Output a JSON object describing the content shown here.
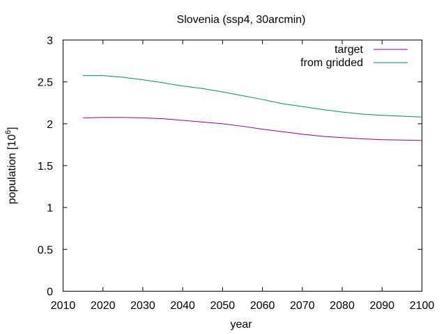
{
  "chart_data": {
    "type": "line",
    "title": "Slovenia (ssp4, 30arcmin)",
    "xlabel": "year",
    "ylabel": "population [10",
    "ylabel_superscript": "6",
    "ylabel_suffix": "]",
    "xlim": [
      2010,
      2100
    ],
    "ylim": [
      0,
      3
    ],
    "xticks": [
      2010,
      2020,
      2030,
      2040,
      2050,
      2060,
      2070,
      2080,
      2090,
      2100
    ],
    "yticks": [
      "0",
      "0.5",
      "1",
      "1.5",
      "2",
      "2.5",
      "3"
    ],
    "grid": false,
    "legend_position": "top-right",
    "series": [
      {
        "name": "target",
        "color": "#8b008b",
        "x": [
          2015,
          2020,
          2025,
          2030,
          2035,
          2040,
          2045,
          2050,
          2055,
          2060,
          2065,
          2070,
          2075,
          2080,
          2085,
          2090,
          2095,
          2100
        ],
        "y": [
          2.07,
          2.075,
          2.075,
          2.07,
          2.06,
          2.04,
          2.02,
          2.0,
          1.97,
          1.935,
          1.905,
          1.875,
          1.85,
          1.835,
          1.82,
          1.81,
          1.805,
          1.8
        ]
      },
      {
        "name": "from gridded",
        "color": "#008b6b",
        "x": [
          2015,
          2020,
          2025,
          2030,
          2035,
          2040,
          2045,
          2050,
          2055,
          2060,
          2065,
          2070,
          2075,
          2080,
          2085,
          2090,
          2095,
          2100
        ],
        "y": [
          2.575,
          2.575,
          2.555,
          2.525,
          2.49,
          2.45,
          2.42,
          2.38,
          2.335,
          2.29,
          2.24,
          2.205,
          2.17,
          2.14,
          2.115,
          2.1,
          2.09,
          2.08
        ]
      }
    ]
  }
}
